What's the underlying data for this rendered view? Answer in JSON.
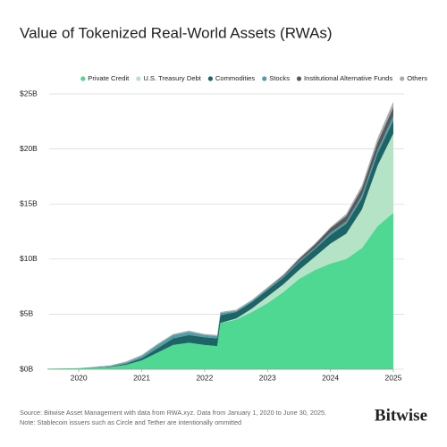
{
  "chart_data": {
    "type": "stacked_area",
    "title": "Value of Tokenized Real-World Assets (RWAs)",
    "x": [
      2020.0,
      2020.5,
      2021.0,
      2021.25,
      2021.5,
      2021.75,
      2022.0,
      2022.25,
      2022.5,
      2022.7,
      2022.75,
      2023.0,
      2023.25,
      2023.5,
      2023.75,
      2024.0,
      2024.25,
      2024.5,
      2024.75,
      2025.0,
      2025.25,
      2025.5
    ],
    "series": [
      {
        "name": "Private Credit",
        "color": "#4fd892",
        "values": [
          0.05,
          0.1,
          0.2,
          0.4,
          0.8,
          1.5,
          2.2,
          2.4,
          2.2,
          2.1,
          4.2,
          4.5,
          5.2,
          6.0,
          7.0,
          8.2,
          9.0,
          9.6,
          10.0,
          11.0,
          13.0,
          14.2
        ]
      },
      {
        "name": "U.S. Treasury Debt",
        "color": "#b5e3c6",
        "values": [
          0,
          0,
          0,
          0,
          0,
          0,
          0,
          0,
          0,
          0,
          0,
          0.1,
          0.3,
          0.6,
          0.7,
          0.8,
          1.2,
          1.8,
          2.3,
          3.5,
          5.5,
          7.2
        ]
      },
      {
        "name": "Commodities",
        "color": "#1d6466",
        "values": [
          0,
          0,
          0.05,
          0.1,
          0.2,
          0.4,
          0.6,
          0.7,
          0.7,
          0.7,
          0.7,
          0.6,
          0.6,
          0.6,
          0.6,
          0.7,
          0.7,
          0.8,
          0.9,
          1.0,
          1.1,
          1.2
        ]
      },
      {
        "name": "Stocks",
        "color": "#4f9ea6",
        "values": [
          0,
          0,
          0.05,
          0.1,
          0.2,
          0.3,
          0.3,
          0.3,
          0.2,
          0.2,
          0.2,
          0.1,
          0.1,
          0.1,
          0.1,
          0.1,
          0.1,
          0.2,
          0.2,
          0.3,
          0.3,
          0.4
        ]
      },
      {
        "name": "Institutional Alternative Funds",
        "color": "#555a5c",
        "values": [
          0,
          0,
          0,
          0,
          0,
          0,
          0,
          0,
          0,
          0,
          0,
          0,
          0,
          0.05,
          0.1,
          0.2,
          0.3,
          0.4,
          0.5,
          0.6,
          0.7,
          0.8
        ]
      },
      {
        "name": "Others",
        "color": "#a9acae",
        "values": [
          0,
          0,
          0.05,
          0.1,
          0.1,
          0.1,
          0.1,
          0.1,
          0.1,
          0.1,
          0.1,
          0.1,
          0.1,
          0.1,
          0.1,
          0.1,
          0.1,
          0.1,
          0.2,
          0.3,
          0.4,
          0.5
        ]
      }
    ],
    "xlim": [
      2020.0,
      2025.5
    ],
    "xticks": [
      {
        "value": 2020.5,
        "label": "2020"
      },
      {
        "value": 2021.5,
        "label": "2021"
      },
      {
        "value": 2022.5,
        "label": "2022"
      },
      {
        "value": 2023.5,
        "label": "2023"
      },
      {
        "value": 2024.5,
        "label": "2024"
      },
      {
        "value": 2025.5,
        "label": "2025"
      }
    ],
    "ylim": [
      0,
      25
    ],
    "yticks": [
      {
        "value": 0,
        "label": "$0B"
      },
      {
        "value": 5,
        "label": "$5B"
      },
      {
        "value": 10,
        "label": "$10B"
      },
      {
        "value": 15,
        "label": "$15B"
      },
      {
        "value": 20,
        "label": "$20B"
      },
      {
        "value": 25,
        "label": "$25B"
      }
    ],
    "grid": true,
    "legend": "top",
    "source": "Source: Bitwise Asset Management with data from RWA.xyz. Data from January 1, 2020 to June 30, 2025.",
    "note": "Note: Stablecoin issuers such as Circle and Tether are intentionally ommitted",
    "brand": "Bitwise"
  }
}
